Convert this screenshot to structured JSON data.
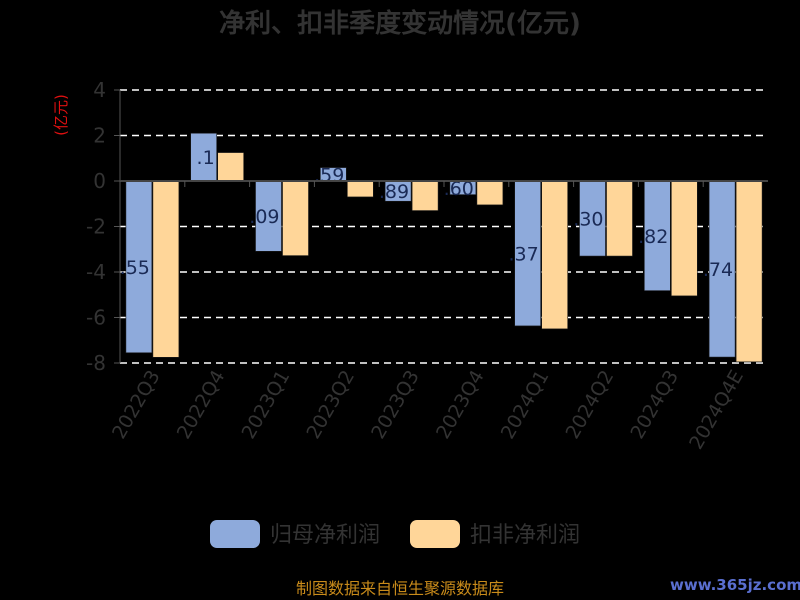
{
  "chart_data": {
    "type": "bar",
    "title": "净利、扣非季度变动情况(亿元)",
    "unit_label": "(亿元)",
    "categories": [
      "2022Q3",
      "2022Q4",
      "2023Q1",
      "2023Q2",
      "2023Q3",
      "2023Q4",
      "2024Q1",
      "2024Q2",
      "2024Q3",
      "2024Q4E"
    ],
    "ylim": [
      -8,
      4
    ],
    "yticks": [
      "4",
      "2",
      "0",
      "-2",
      "-4",
      "-6",
      "-8"
    ],
    "grid": true,
    "legend_position": "bottom",
    "series": [
      {
        "name": "归母净利润",
        "color": "#8eaadb",
        "values": [
          -7.55,
          2.1,
          -3.09,
          0.59,
          -0.89,
          -0.6,
          -6.37,
          -3.3,
          -4.82,
          -7.74
        ],
        "labels": [
          ".55",
          ".1",
          ".09",
          ".59",
          ".89",
          ".60",
          ".37",
          ".30",
          ".82",
          ".74"
        ]
      },
      {
        "name": "扣非净利润",
        "color": "#ffd699",
        "values": [
          -7.75,
          1.25,
          -3.28,
          -0.7,
          -1.3,
          -1.05,
          -6.5,
          -3.3,
          -5.05,
          -7.95
        ]
      }
    ]
  },
  "footer": {
    "source": "制图数据来自恒生聚源数据库",
    "watermark": "www.365jz.com"
  }
}
